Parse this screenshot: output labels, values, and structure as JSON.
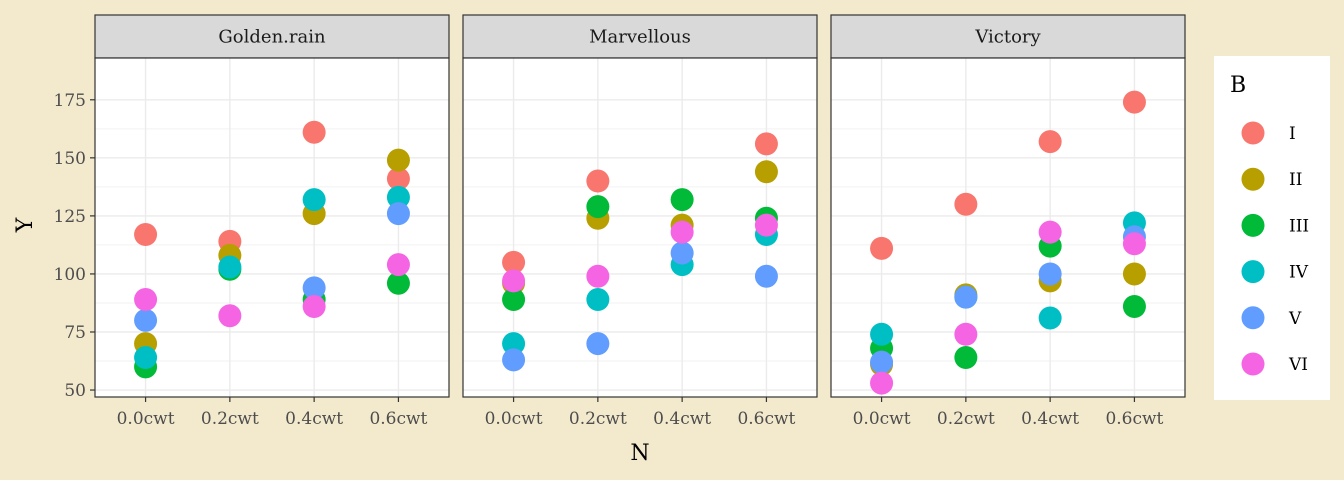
{
  "chart_data": {
    "type": "scatter",
    "xlabel": "N",
    "ylabel": "Y",
    "x_categories": [
      "0.0cwt",
      "0.2cwt",
      "0.4cwt",
      "0.6cwt"
    ],
    "ylim": [
      47,
      193
    ],
    "yticks": [
      50,
      75,
      100,
      125,
      150,
      175
    ],
    "grid": true,
    "legend": {
      "title": "B",
      "placement": "right",
      "entries": [
        {
          "label": "I",
          "color": "#F8766D"
        },
        {
          "label": "II",
          "color": "#B79F00"
        },
        {
          "label": "III",
          "color": "#00BA38"
        },
        {
          "label": "IV",
          "color": "#00BFC4"
        },
        {
          "label": "V",
          "color": "#619CFF"
        },
        {
          "label": "VI",
          "color": "#F564E3"
        }
      ]
    },
    "facets": [
      {
        "title": "Golden.rain",
        "points": [
          {
            "x": "0.0cwt",
            "y": 117,
            "B": "I"
          },
          {
            "x": "0.0cwt",
            "y": 70,
            "B": "II"
          },
          {
            "x": "0.0cwt",
            "y": 60,
            "B": "III"
          },
          {
            "x": "0.0cwt",
            "y": 64,
            "B": "IV"
          },
          {
            "x": "0.0cwt",
            "y": 80,
            "B": "V"
          },
          {
            "x": "0.0cwt",
            "y": 89,
            "B": "VI"
          },
          {
            "x": "0.2cwt",
            "y": 114,
            "B": "I"
          },
          {
            "x": "0.2cwt",
            "y": 108,
            "B": "II"
          },
          {
            "x": "0.2cwt",
            "y": 102,
            "B": "III"
          },
          {
            "x": "0.2cwt",
            "y": 103,
            "B": "IV"
          },
          {
            "x": "0.2cwt",
            "y": 82,
            "B": "VI"
          },
          {
            "x": "0.4cwt",
            "y": 161,
            "B": "I"
          },
          {
            "x": "0.4cwt",
            "y": 126,
            "B": "II"
          },
          {
            "x": "0.4cwt",
            "y": 89,
            "B": "III"
          },
          {
            "x": "0.4cwt",
            "y": 132,
            "B": "IV"
          },
          {
            "x": "0.4cwt",
            "y": 94,
            "B": "V"
          },
          {
            "x": "0.4cwt",
            "y": 86,
            "B": "VI"
          },
          {
            "x": "0.6cwt",
            "y": 141,
            "B": "I"
          },
          {
            "x": "0.6cwt",
            "y": 149,
            "B": "II"
          },
          {
            "x": "0.6cwt",
            "y": 96,
            "B": "III"
          },
          {
            "x": "0.6cwt",
            "y": 133,
            "B": "IV"
          },
          {
            "x": "0.6cwt",
            "y": 126,
            "B": "V"
          },
          {
            "x": "0.6cwt",
            "y": 104,
            "B": "VI"
          }
        ]
      },
      {
        "title": "Marvellous",
        "points": [
          {
            "x": "0.0cwt",
            "y": 105,
            "B": "I"
          },
          {
            "x": "0.0cwt",
            "y": 96,
            "B": "II"
          },
          {
            "x": "0.0cwt",
            "y": 89,
            "B": "III"
          },
          {
            "x": "0.0cwt",
            "y": 70,
            "B": "IV"
          },
          {
            "x": "0.0cwt",
            "y": 63,
            "B": "V"
          },
          {
            "x": "0.0cwt",
            "y": 97,
            "B": "VI"
          },
          {
            "x": "0.2cwt",
            "y": 140,
            "B": "I"
          },
          {
            "x": "0.2cwt",
            "y": 124,
            "B": "II"
          },
          {
            "x": "0.2cwt",
            "y": 129,
            "B": "III"
          },
          {
            "x": "0.2cwt",
            "y": 89,
            "B": "IV"
          },
          {
            "x": "0.2cwt",
            "y": 70,
            "B": "V"
          },
          {
            "x": "0.2cwt",
            "y": 99,
            "B": "VI"
          },
          {
            "x": "0.4cwt",
            "y": 121,
            "B": "II"
          },
          {
            "x": "0.4cwt",
            "y": 132,
            "B": "III"
          },
          {
            "x": "0.4cwt",
            "y": 104,
            "B": "IV"
          },
          {
            "x": "0.4cwt",
            "y": 109,
            "B": "V"
          },
          {
            "x": "0.4cwt",
            "y": 118,
            "B": "VI"
          },
          {
            "x": "0.6cwt",
            "y": 156,
            "B": "I"
          },
          {
            "x": "0.6cwt",
            "y": 144,
            "B": "II"
          },
          {
            "x": "0.6cwt",
            "y": 124,
            "B": "III"
          },
          {
            "x": "0.6cwt",
            "y": 117,
            "B": "IV"
          },
          {
            "x": "0.6cwt",
            "y": 99,
            "B": "V"
          },
          {
            "x": "0.6cwt",
            "y": 121,
            "B": "VI"
          }
        ]
      },
      {
        "title": "Victory",
        "points": [
          {
            "x": "0.0cwt",
            "y": 111,
            "B": "I"
          },
          {
            "x": "0.0cwt",
            "y": 61,
            "B": "II"
          },
          {
            "x": "0.0cwt",
            "y": 68,
            "B": "III"
          },
          {
            "x": "0.0cwt",
            "y": 74,
            "B": "IV"
          },
          {
            "x": "0.0cwt",
            "y": 62,
            "B": "V"
          },
          {
            "x": "0.0cwt",
            "y": 53,
            "B": "VI"
          },
          {
            "x": "0.2cwt",
            "y": 130,
            "B": "I"
          },
          {
            "x": "0.2cwt",
            "y": 91,
            "B": "II"
          },
          {
            "x": "0.2cwt",
            "y": 64,
            "B": "III"
          },
          {
            "x": "0.2cwt",
            "y": 90,
            "B": "IV"
          },
          {
            "x": "0.2cwt",
            "y": 90,
            "B": "V"
          },
          {
            "x": "0.2cwt",
            "y": 74,
            "B": "VI"
          },
          {
            "x": "0.4cwt",
            "y": 157,
            "B": "I"
          },
          {
            "x": "0.4cwt",
            "y": 97,
            "B": "II"
          },
          {
            "x": "0.4cwt",
            "y": 112,
            "B": "III"
          },
          {
            "x": "0.4cwt",
            "y": 81,
            "B": "IV"
          },
          {
            "x": "0.4cwt",
            "y": 100,
            "B": "V"
          },
          {
            "x": "0.4cwt",
            "y": 118,
            "B": "VI"
          },
          {
            "x": "0.6cwt",
            "y": 174,
            "B": "I"
          },
          {
            "x": "0.6cwt",
            "y": 100,
            "B": "II"
          },
          {
            "x": "0.6cwt",
            "y": 86,
            "B": "III"
          },
          {
            "x": "0.6cwt",
            "y": 122,
            "B": "IV"
          },
          {
            "x": "0.6cwt",
            "y": 116,
            "B": "V"
          },
          {
            "x": "0.6cwt",
            "y": 113,
            "B": "VI"
          }
        ]
      }
    ]
  }
}
